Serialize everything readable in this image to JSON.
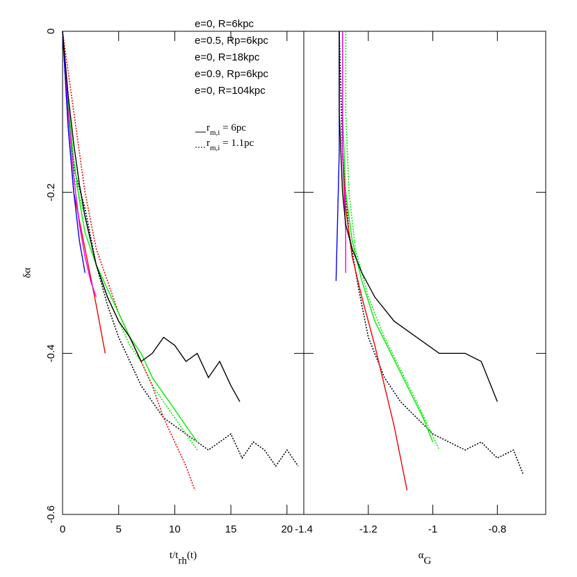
{
  "chart_data": [
    {
      "type": "line",
      "xlabel": [
        "t/t",
        "rh",
        "(t)"
      ],
      "ylabel": "δα",
      "xlim": [
        0,
        21.5
      ],
      "ylim": [
        -0.6,
        0
      ],
      "xticks": [
        0,
        5,
        10,
        15,
        20
      ],
      "yticks": [
        -0.6,
        -0.4,
        -0.2,
        0
      ],
      "legend": [
        {
          "name": "e=0, R=6kpc",
          "color": "#000000"
        },
        {
          "name": "e=0.5, Rp=6kpc",
          "color": "#00ee00"
        },
        {
          "name": "e=0, R=18kpc",
          "color": "#ee0000"
        },
        {
          "name": "e=0.9, Rp=6kpc",
          "color": "#ee00ee"
        },
        {
          "name": "e=0, R=104kpc",
          "color": "#0000ee"
        }
      ],
      "linestyles": [
        {
          "label": [
            "r",
            "m,i",
            " = 6pc"
          ],
          "dash": "solid"
        },
        {
          "label": [
            "r",
            "m,i",
            " = 1.1pc"
          ],
          "dash": "dotted"
        }
      ],
      "series": [
        {
          "color": "#000000",
          "dash": "dotted",
          "x": [
            0,
            0.5,
            1,
            2,
            3,
            4,
            5,
            6,
            7,
            8,
            9,
            10,
            11,
            12,
            13,
            14,
            15,
            16,
            17,
            18,
            19,
            20,
            21
          ],
          "values": [
            0,
            -0.1,
            -0.17,
            -0.22,
            -0.29,
            -0.34,
            -0.38,
            -0.41,
            -0.44,
            -0.46,
            -0.48,
            -0.49,
            -0.5,
            -0.51,
            -0.52,
            -0.51,
            -0.5,
            -0.53,
            -0.51,
            -0.52,
            -0.54,
            -0.52,
            -0.54
          ]
        },
        {
          "color": "#00ee00",
          "dash": "dotted",
          "x": [
            0,
            0.5,
            1,
            2,
            3,
            4,
            5,
            6,
            7,
            8,
            9,
            10,
            11,
            12
          ],
          "values": [
            0,
            -0.1,
            -0.18,
            -0.23,
            -0.29,
            -0.33,
            -0.36,
            -0.39,
            -0.41,
            -0.44,
            -0.46,
            -0.48,
            -0.5,
            -0.52
          ]
        },
        {
          "color": "#ee0000",
          "dash": "dotted",
          "x": [
            0,
            1,
            2,
            3,
            4,
            5,
            6,
            7,
            8,
            9,
            10,
            11,
            11.8
          ],
          "values": [
            0,
            -0.1,
            -0.2,
            -0.27,
            -0.31,
            -0.35,
            -0.38,
            -0.41,
            -0.44,
            -0.48,
            -0.51,
            -0.54,
            -0.57
          ]
        },
        {
          "color": "#00ee00",
          "dash": "solid",
          "x": [
            0,
            0.5,
            1,
            1.5,
            2,
            3,
            4,
            5,
            6,
            7,
            8,
            9,
            10,
            11,
            12
          ],
          "values": [
            0,
            -0.09,
            -0.16,
            -0.21,
            -0.25,
            -0.29,
            -0.32,
            -0.35,
            -0.38,
            -0.4,
            -0.43,
            -0.45,
            -0.47,
            -0.49,
            -0.51
          ]
        },
        {
          "color": "#ee0000",
          "dash": "solid",
          "x": [
            0,
            0.5,
            1,
            2,
            3,
            3.8
          ],
          "values": [
            0,
            -0.12,
            -0.2,
            -0.27,
            -0.34,
            -0.4
          ]
        },
        {
          "color": "#ee00ee",
          "dash": "solid",
          "x": [
            0,
            0.5,
            1,
            1.5,
            2,
            2.5,
            3
          ],
          "values": [
            0,
            -0.1,
            -0.18,
            -0.24,
            -0.28,
            -0.31,
            -0.33
          ]
        },
        {
          "color": "#0000ee",
          "dash": "solid",
          "x": [
            0,
            0.5,
            1,
            1.5,
            2
          ],
          "values": [
            0,
            -0.12,
            -0.2,
            -0.26,
            -0.3
          ]
        },
        {
          "color": "#000000",
          "dash": "solid",
          "x": [
            0,
            0.5,
            1,
            1.5,
            2,
            3,
            4,
            5,
            6,
            7,
            8,
            9,
            10,
            11,
            12,
            13,
            14,
            15,
            15.8
          ],
          "values": [
            0,
            -0.08,
            -0.14,
            -0.19,
            -0.23,
            -0.29,
            -0.33,
            -0.36,
            -0.38,
            -0.41,
            -0.4,
            -0.38,
            -0.39,
            -0.41,
            -0.4,
            -0.43,
            -0.41,
            -0.44,
            -0.46
          ]
        }
      ]
    },
    {
      "type": "line",
      "xlabel": [
        "α",
        "G"
      ],
      "xlim": [
        -1.4,
        -0.65
      ],
      "ylim": [
        -0.6,
        0
      ],
      "xticks": [
        -1.4,
        -1.2,
        -1,
        -0.8
      ],
      "yticks": [
        -0.6,
        -0.4,
        -0.2,
        0
      ],
      "series": [
        {
          "color": "#000000",
          "dash": "dotted",
          "x": [
            -1.29,
            -1.28,
            -1.26,
            -1.23,
            -1.2,
            -1.15,
            -1.1,
            -1.05,
            -1,
            -0.95,
            -0.9,
            -0.85,
            -0.8,
            -0.75,
            -0.72
          ],
          "values": [
            0,
            -0.15,
            -0.25,
            -0.32,
            -0.38,
            -0.43,
            -0.46,
            -0.48,
            -0.5,
            -0.51,
            -0.52,
            -0.51,
            -0.53,
            -0.52,
            -0.55
          ]
        },
        {
          "color": "#00ee00",
          "dash": "dotted",
          "x": [
            -1.27,
            -1.27,
            -1.26,
            -1.24,
            -1.2,
            -1.15,
            -1.1,
            -1.05,
            -0.98
          ],
          "values": [
            0,
            -0.1,
            -0.2,
            -0.27,
            -0.33,
            -0.38,
            -0.42,
            -0.46,
            -0.52
          ]
        },
        {
          "color": "#ee0000",
          "dash": "solid",
          "x": [
            -1.28,
            -1.28,
            -1.27,
            -1.25,
            -1.22,
            -1.18,
            -1.15,
            -1.12,
            -1.1,
            -1.08
          ],
          "values": [
            0,
            -0.15,
            -0.22,
            -0.28,
            -0.33,
            -0.39,
            -0.44,
            -0.49,
            -0.53,
            -0.57
          ]
        },
        {
          "color": "#00ee00",
          "dash": "solid",
          "x": [
            -1.28,
            -1.28,
            -1.27,
            -1.25,
            -1.22,
            -1.18,
            -1.13,
            -1.08,
            -1.03,
            -1
          ],
          "values": [
            0,
            -0.1,
            -0.2,
            -0.26,
            -0.31,
            -0.36,
            -0.4,
            -0.44,
            -0.48,
            -0.51
          ]
        },
        {
          "color": "#ee00ee",
          "dash": "solid",
          "x": [
            -1.28,
            -1.28,
            -1.27,
            -1.27
          ],
          "values": [
            0,
            -0.15,
            -0.25,
            -0.3
          ]
        },
        {
          "color": "#0000ee",
          "dash": "solid",
          "x": [
            -1.29,
            -1.29,
            -1.3
          ],
          "values": [
            0,
            -0.15,
            -0.31
          ]
        },
        {
          "color": "#000000",
          "dash": "solid",
          "x": [
            -1.29,
            -1.29,
            -1.28,
            -1.27,
            -1.25,
            -1.22,
            -1.18,
            -1.12,
            -1.05,
            -0.98,
            -0.9,
            -0.85,
            -0.8
          ],
          "values": [
            0,
            -0.1,
            -0.2,
            -0.24,
            -0.27,
            -0.3,
            -0.33,
            -0.36,
            -0.38,
            -0.4,
            -0.4,
            -0.41,
            -0.46
          ]
        }
      ]
    }
  ]
}
